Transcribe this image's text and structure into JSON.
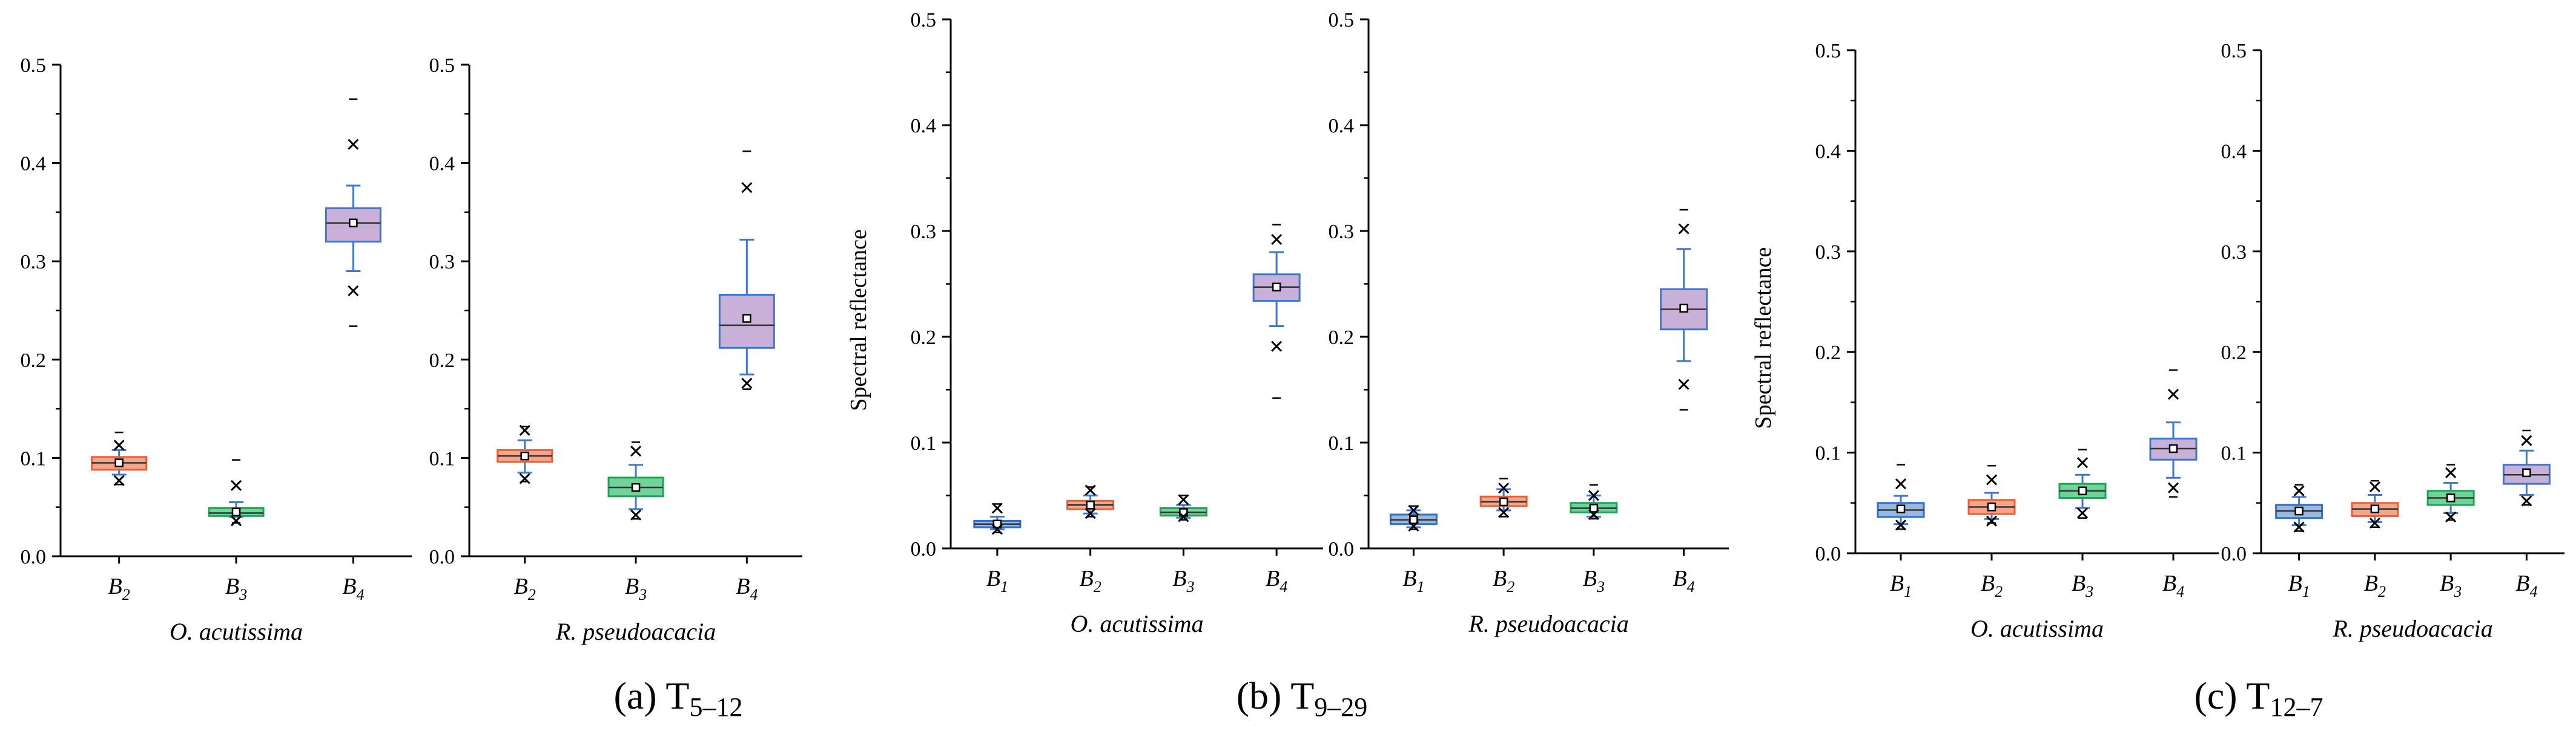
{
  "colors": {
    "B1": {
      "fill": "#9ab8db",
      "stroke": "#2e6fcf"
    },
    "B2": {
      "fill": "#f4a58c",
      "stroke": "#e8603a"
    },
    "B3": {
      "fill": "#6fd39a",
      "stroke": "#1fa355"
    },
    "B4": {
      "fill": "#c8b0d8",
      "stroke": "#3d77cf"
    },
    "whisker": "#3d77cf",
    "median": "#333333",
    "outlier": "#000000"
  },
  "ylabel": "Spectral reflectance",
  "panels": [
    {
      "caption_letter": "(a)",
      "caption_main": "T",
      "caption_sub": "5–12",
      "plots": [
        {
          "xlabel": "O. acutissima",
          "ylim": [
            0,
            0.5
          ],
          "yticks": [
            "0.0",
            "0.1",
            "0.2",
            "0.3",
            "0.4",
            "0.5"
          ],
          "boxes": [
            {
              "label": "B",
              "sub": "2",
              "key": "B2",
              "q1": 0.088,
              "median": 0.095,
              "q3": 0.101,
              "mean": 0.095,
              "wlo": 0.083,
              "whi": 0.108,
              "crosses": [
                0.077,
                0.113
              ],
              "dashes": [
                0.073,
                0.126
              ]
            },
            {
              "label": "B",
              "sub": "3",
              "key": "B3",
              "q1": 0.041,
              "median": 0.044,
              "q3": 0.049,
              "mean": 0.045,
              "wlo": 0.04,
              "whi": 0.055,
              "crosses": [
                0.036,
                0.072
              ],
              "dashes": [
                0.034,
                0.098
              ]
            },
            {
              "label": "B",
              "sub": "4",
              "key": "B4",
              "q1": 0.32,
              "median": 0.339,
              "q3": 0.354,
              "mean": 0.339,
              "wlo": 0.29,
              "whi": 0.377,
              "crosses": [
                0.27,
                0.419
              ],
              "dashes": [
                0.234,
                0.465
              ]
            }
          ]
        },
        {
          "xlabel": "R. pseudoacacia",
          "ylim": [
            0,
            0.5
          ],
          "yticks": [
            "0.0",
            "0.1",
            "0.2",
            "0.3",
            "0.4",
            "0.5"
          ],
          "boxes": [
            {
              "label": "B",
              "sub": "2",
              "key": "B2",
              "q1": 0.096,
              "median": 0.102,
              "q3": 0.108,
              "mean": 0.102,
              "wlo": 0.085,
              "whi": 0.118,
              "crosses": [
                0.079,
                0.128
              ],
              "dashes": [
                0.076,
                0.132
              ]
            },
            {
              "label": "B",
              "sub": "3",
              "key": "B3",
              "q1": 0.061,
              "median": 0.07,
              "q3": 0.08,
              "mean": 0.07,
              "wlo": 0.048,
              "whi": 0.093,
              "crosses": [
                0.042,
                0.107
              ],
              "dashes": [
                0.038,
                0.116
              ]
            },
            {
              "label": "B",
              "sub": "4",
              "key": "B4",
              "q1": 0.212,
              "median": 0.235,
              "q3": 0.266,
              "mean": 0.242,
              "wlo": 0.185,
              "whi": 0.322,
              "crosses": [
                0.176,
                0.375
              ],
              "dashes": [
                0.17,
                0.412
              ]
            }
          ]
        }
      ]
    },
    {
      "caption_letter": "(b)",
      "caption_main": "T",
      "caption_sub": "9–29",
      "plots": [
        {
          "xlabel": "O. acutissima",
          "ylim": [
            0,
            0.5
          ],
          "yticks": [
            "0.0",
            "0.1",
            "0.2",
            "0.3",
            "0.4",
            "0.5"
          ],
          "boxes": [
            {
              "label": "B",
              "sub": "1",
              "key": "B1",
              "q1": 0.02,
              "median": 0.023,
              "q3": 0.026,
              "mean": 0.023,
              "wlo": 0.018,
              "whi": 0.03,
              "crosses": [
                0.018,
                0.038
              ],
              "dashes": [
                0.015,
                0.042
              ]
            },
            {
              "label": "B",
              "sub": "2",
              "key": "B2",
              "q1": 0.037,
              "median": 0.041,
              "q3": 0.045,
              "mean": 0.041,
              "wlo": 0.033,
              "whi": 0.05,
              "crosses": [
                0.033,
                0.055
              ],
              "dashes": [
                0.03,
                0.058
              ]
            },
            {
              "label": "B",
              "sub": "3",
              "key": "B3",
              "q1": 0.031,
              "median": 0.034,
              "q3": 0.038,
              "mean": 0.034,
              "wlo": 0.029,
              "whi": 0.041,
              "crosses": [
                0.03,
                0.046
              ],
              "dashes": [
                0.027,
                0.05
              ]
            },
            {
              "label": "B",
              "sub": "4",
              "key": "B4",
              "q1": 0.234,
              "median": 0.247,
              "q3": 0.259,
              "mean": 0.247,
              "wlo": 0.21,
              "whi": 0.28,
              "crosses": [
                0.191,
                0.292
              ],
              "dashes": [
                0.142,
                0.306
              ]
            }
          ]
        },
        {
          "xlabel": "R. pseudoacacia",
          "ylim": [
            0,
            0.5
          ],
          "yticks": [
            "0.0",
            "0.1",
            "0.2",
            "0.3",
            "0.4",
            "0.5"
          ],
          "boxes": [
            {
              "label": "B",
              "sub": "1",
              "key": "B1",
              "q1": 0.023,
              "median": 0.027,
              "q3": 0.032,
              "mean": 0.027,
              "wlo": 0.02,
              "whi": 0.036,
              "crosses": [
                0.021,
                0.036
              ],
              "dashes": [
                0.018,
                0.04
              ]
            },
            {
              "label": "B",
              "sub": "2",
              "key": "B2",
              "q1": 0.04,
              "median": 0.044,
              "q3": 0.049,
              "mean": 0.044,
              "wlo": 0.036,
              "whi": 0.056,
              "crosses": [
                0.034,
                0.057
              ],
              "dashes": [
                0.03,
                0.066
              ]
            },
            {
              "label": "B",
              "sub": "3",
              "key": "B3",
              "q1": 0.034,
              "median": 0.038,
              "q3": 0.043,
              "mean": 0.038,
              "wlo": 0.03,
              "whi": 0.05,
              "crosses": [
                0.032,
                0.05
              ],
              "dashes": [
                0.028,
                0.06
              ]
            },
            {
              "label": "B",
              "sub": "4",
              "key": "B4",
              "q1": 0.207,
              "median": 0.226,
              "q3": 0.245,
              "mean": 0.227,
              "wlo": 0.177,
              "whi": 0.283,
              "crosses": [
                0.155,
                0.302
              ],
              "dashes": [
                0.131,
                0.32
              ]
            }
          ]
        }
      ]
    },
    {
      "caption_letter": "(c)",
      "caption_main": "T",
      "caption_sub": "12–7",
      "plots": [
        {
          "xlabel": "O. acutissima",
          "ylim": [
            0,
            0.5
          ],
          "yticks": [
            "0.0",
            "0.1",
            "0.2",
            "0.3",
            "0.4",
            "0.5"
          ],
          "boxes": [
            {
              "label": "B",
              "sub": "1",
              "key": "B1",
              "q1": 0.036,
              "median": 0.043,
              "q3": 0.05,
              "mean": 0.044,
              "wlo": 0.029,
              "whi": 0.057,
              "crosses": [
                0.028,
                0.069
              ],
              "dashes": [
                0.024,
                0.088
              ]
            },
            {
              "label": "B",
              "sub": "2",
              "key": "B2",
              "q1": 0.039,
              "median": 0.046,
              "q3": 0.053,
              "mean": 0.046,
              "wlo": 0.034,
              "whi": 0.06,
              "crosses": [
                0.032,
                0.073
              ],
              "dashes": [
                0.03,
                0.087
              ]
            },
            {
              "label": "B",
              "sub": "3",
              "key": "B3",
              "q1": 0.055,
              "median": 0.062,
              "q3": 0.069,
              "mean": 0.062,
              "wlo": 0.045,
              "whi": 0.078,
              "crosses": [
                0.04,
                0.09
              ],
              "dashes": [
                0.035,
                0.103
              ]
            },
            {
              "label": "B",
              "sub": "4",
              "key": "B4",
              "q1": 0.093,
              "median": 0.104,
              "q3": 0.114,
              "mean": 0.104,
              "wlo": 0.075,
              "whi": 0.13,
              "crosses": [
                0.065,
                0.158
              ],
              "dashes": [
                0.056,
                0.182
              ]
            }
          ]
        },
        {
          "xlabel": "R. pseudoacacia",
          "ylim": [
            0,
            0.5
          ],
          "yticks": [
            "0.0",
            "0.1",
            "0.2",
            "0.3",
            "0.4",
            "0.5"
          ],
          "boxes": [
            {
              "label": "B",
              "sub": "1",
              "key": "B1",
              "q1": 0.035,
              "median": 0.042,
              "q3": 0.048,
              "mean": 0.042,
              "wlo": 0.028,
              "whi": 0.056,
              "crosses": [
                0.026,
                0.062
              ],
              "dashes": [
                0.022,
                0.068
              ]
            },
            {
              "label": "B",
              "sub": "2",
              "key": "B2",
              "q1": 0.037,
              "median": 0.044,
              "q3": 0.05,
              "mean": 0.044,
              "wlo": 0.031,
              "whi": 0.058,
              "crosses": [
                0.03,
                0.066
              ],
              "dashes": [
                0.026,
                0.072
              ]
            },
            {
              "label": "B",
              "sub": "3",
              "key": "B3",
              "q1": 0.048,
              "median": 0.055,
              "q3": 0.062,
              "mean": 0.055,
              "wlo": 0.04,
              "whi": 0.07,
              "crosses": [
                0.036,
                0.08
              ],
              "dashes": [
                0.033,
                0.088
              ]
            },
            {
              "label": "B",
              "sub": "4",
              "key": "B4",
              "q1": 0.069,
              "median": 0.078,
              "q3": 0.088,
              "mean": 0.08,
              "wlo": 0.058,
              "whi": 0.102,
              "crosses": [
                0.052,
                0.112
              ],
              "dashes": [
                0.048,
                0.122
              ]
            }
          ]
        }
      ]
    }
  ],
  "chart_data": [
    {
      "type": "box",
      "panel": "(a) T5–12",
      "xlabel": "O. acutissima",
      "ylabel": "Spectral reflectance",
      "ylim": [
        0,
        0.5
      ],
      "categories": [
        "B2",
        "B3",
        "B4"
      ],
      "medians": [
        0.095,
        0.044,
        0.339
      ],
      "q1": [
        0.088,
        0.041,
        0.32
      ],
      "q3": [
        0.101,
        0.049,
        0.354
      ]
    },
    {
      "type": "box",
      "panel": "(a) T5–12",
      "xlabel": "R. pseudoacacia",
      "ylabel": "Spectral reflectance",
      "ylim": [
        0,
        0.5
      ],
      "categories": [
        "B2",
        "B3",
        "B4"
      ],
      "medians": [
        0.102,
        0.07,
        0.235
      ],
      "q1": [
        0.096,
        0.061,
        0.212
      ],
      "q3": [
        0.108,
        0.08,
        0.266
      ]
    },
    {
      "type": "box",
      "panel": "(b) T9–29",
      "xlabel": "O. acutissima",
      "ylabel": "Spectral reflectance",
      "ylim": [
        0,
        0.5
      ],
      "categories": [
        "B1",
        "B2",
        "B3",
        "B4"
      ],
      "medians": [
        0.023,
        0.041,
        0.034,
        0.247
      ],
      "q1": [
        0.02,
        0.037,
        0.031,
        0.234
      ],
      "q3": [
        0.026,
        0.045,
        0.038,
        0.259
      ]
    },
    {
      "type": "box",
      "panel": "(b) T9–29",
      "xlabel": "R. pseudoacacia",
      "ylabel": "Spectral reflectance",
      "ylim": [
        0,
        0.5
      ],
      "categories": [
        "B1",
        "B2",
        "B3",
        "B4"
      ],
      "medians": [
        0.027,
        0.044,
        0.038,
        0.226
      ],
      "q1": [
        0.023,
        0.04,
        0.034,
        0.207
      ],
      "q3": [
        0.032,
        0.049,
        0.043,
        0.245
      ]
    },
    {
      "type": "box",
      "panel": "(c) T12–7",
      "xlabel": "O. acutissima",
      "ylabel": "Spectral reflectance",
      "ylim": [
        0,
        0.5
      ],
      "categories": [
        "B1",
        "B2",
        "B3",
        "B4"
      ],
      "medians": [
        0.043,
        0.046,
        0.062,
        0.104
      ],
      "q1": [
        0.036,
        0.039,
        0.055,
        0.093
      ],
      "q3": [
        0.05,
        0.053,
        0.069,
        0.114
      ]
    },
    {
      "type": "box",
      "panel": "(c) T12–7",
      "xlabel": "R. pseudoacacia",
      "ylabel": "Spectral reflectance",
      "ylim": [
        0,
        0.5
      ],
      "categories": [
        "B1",
        "B2",
        "B3",
        "B4"
      ],
      "medians": [
        0.042,
        0.044,
        0.055,
        0.078
      ],
      "q1": [
        0.035,
        0.037,
        0.048,
        0.069
      ],
      "q3": [
        0.048,
        0.05,
        0.062,
        0.088
      ]
    }
  ]
}
